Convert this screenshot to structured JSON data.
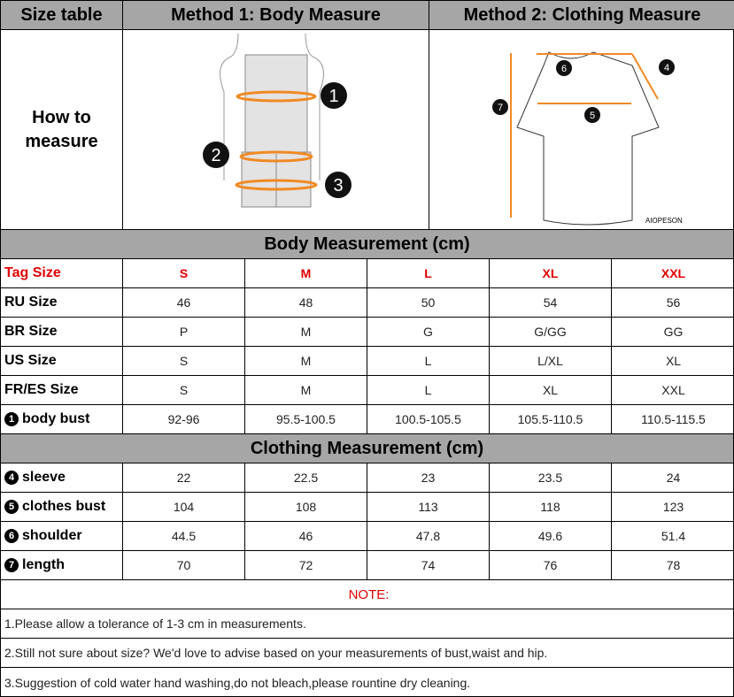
{
  "header": {
    "col1": "Size table",
    "col2": "Method 1: Body  Measure",
    "col3": "Method 2: Clothing Measure"
  },
  "how_to": "How to measure",
  "figure_labels": {
    "body": [
      "1",
      "2",
      "3"
    ],
    "clothing": [
      "4",
      "5",
      "6",
      "7"
    ],
    "brand": "AIOPESON"
  },
  "accent_color": "#f08a24",
  "body_section": "Body Measurement (cm)",
  "body_rows": [
    {
      "label": "Tag Size",
      "values": [
        "S",
        "M",
        "L",
        "XL",
        "XXL"
      ]
    },
    {
      "label": "RU Size",
      "values": [
        "46",
        "48",
        "50",
        "54",
        "56"
      ]
    },
    {
      "label": "BR Size",
      "values": [
        "P",
        "M",
        "G",
        "G/GG",
        "GG"
      ]
    },
    {
      "label": "US Size",
      "values": [
        "S",
        "M",
        "L",
        "L/XL",
        "XL"
      ]
    },
    {
      "label": "FR/ES Size",
      "values": [
        "S",
        "M",
        "L",
        "XL",
        "XXL"
      ]
    },
    {
      "num": "1",
      "label": "body bust",
      "values": [
        "92-96",
        "95.5-100.5",
        "100.5-105.5",
        "105.5-110.5",
        "110.5-115.5"
      ]
    }
  ],
  "clothing_section": "Clothing Measurement (cm)",
  "clothing_rows": [
    {
      "num": "4",
      "label": "sleeve",
      "values": [
        "22",
        "22.5",
        "23",
        "23.5",
        "24"
      ]
    },
    {
      "num": "5",
      "label": "clothes bust",
      "values": [
        "104",
        "108",
        "113",
        "118",
        "123"
      ]
    },
    {
      "num": "6",
      "label": "shoulder",
      "values": [
        "44.5",
        "46",
        "47.8",
        "49.6",
        "51.4"
      ]
    },
    {
      "num": "7",
      "label": "length",
      "values": [
        "70",
        "72",
        "74",
        "76",
        "78"
      ]
    }
  ],
  "notes": {
    "title": "NOTE:",
    "items": [
      "1.Please allow a tolerance of 1-3 cm in measurements.",
      "2.Still not sure about size? We'd love to advise based on your measurements of bust,waist and hip.",
      "3.Suggestion of cold water hand washing,do not bleach,please rountine dry cleaning."
    ]
  }
}
